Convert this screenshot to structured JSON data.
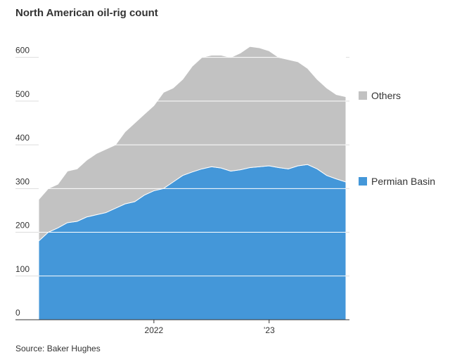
{
  "chart_data": {
    "type": "stacked-area",
    "title": "North American oil-rig count",
    "source": "Source: Baker Hughes",
    "categories": [
      null,
      null,
      null,
      null,
      null,
      null,
      null,
      null,
      null,
      null,
      null,
      null,
      "2022",
      null,
      null,
      null,
      null,
      null,
      null,
      null,
      null,
      null,
      null,
      null,
      "’23",
      null,
      null,
      null,
      null,
      null,
      null,
      null,
      null
    ],
    "series": [
      {
        "name": "Permian Basin",
        "color": "#4497d9",
        "values": [
          180,
          200,
          210,
          222,
          225,
          235,
          240,
          245,
          255,
          265,
          270,
          285,
          295,
          300,
          315,
          330,
          338,
          345,
          350,
          347,
          340,
          343,
          348,
          350,
          352,
          348,
          345,
          352,
          355,
          345,
          330,
          322,
          315
        ]
      },
      {
        "name": "Others",
        "color": "#c2c2c2",
        "values": [
          95,
          100,
          100,
          118,
          120,
          130,
          140,
          145,
          145,
          165,
          180,
          185,
          195,
          220,
          215,
          220,
          242,
          255,
          255,
          258,
          260,
          267,
          277,
          272,
          263,
          252,
          250,
          238,
          220,
          205,
          200,
          193,
          195
        ]
      }
    ],
    "ylim": [
      0,
      630
    ],
    "yticks": [
      0,
      100,
      200,
      300,
      400,
      500,
      600
    ],
    "grid": true
  }
}
